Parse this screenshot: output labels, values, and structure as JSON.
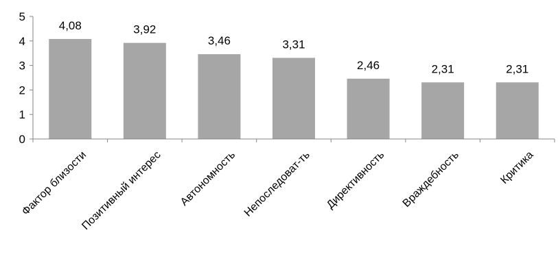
{
  "chart_data": {
    "type": "bar",
    "title": "",
    "xlabel": "",
    "ylabel": "",
    "categories": [
      "Фактор близости",
      "Позитивный интерес",
      "Автономность",
      "Непоследоват-ть",
      "Директивность",
      "Враждебность",
      "Критика"
    ],
    "values": [
      4.08,
      3.92,
      3.46,
      3.31,
      2.46,
      2.31,
      2.31
    ],
    "value_labels": [
      "4,08",
      "3,92",
      "3,46",
      "3,31",
      "2,46",
      "2,31",
      "2,31"
    ],
    "ylim": [
      0,
      5
    ],
    "yticks": [
      0,
      1,
      2,
      3,
      4,
      5
    ],
    "ytick_labels": [
      "0",
      "1",
      "2",
      "3",
      "4",
      "5"
    ],
    "grid": false,
    "legend": "none",
    "bar_color": "#a6a6a6",
    "axis_color": "#868686"
  }
}
